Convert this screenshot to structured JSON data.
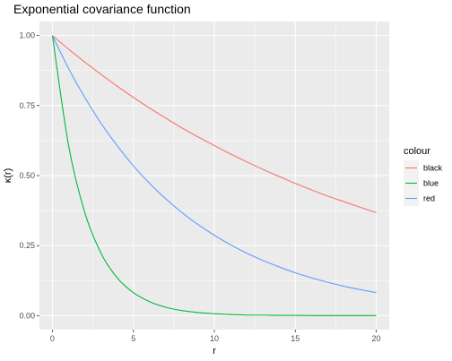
{
  "chart_data": {
    "type": "line",
    "title": "Exponential covariance function",
    "xlabel": "r",
    "ylabel": "κ(r)",
    "xlim": [
      -0.8,
      20.8
    ],
    "ylim": [
      -0.05,
      1.05
    ],
    "x_ticks": [
      0,
      5,
      10,
      15,
      20
    ],
    "x_tick_labels": [
      "0",
      "5",
      "10",
      "15",
      "20"
    ],
    "y_ticks": [
      0,
      0.25,
      0.5,
      0.75,
      1
    ],
    "y_tick_labels": [
      "0.00",
      "0.25",
      "0.50",
      "0.75",
      "1.00"
    ],
    "grid": true,
    "legend": {
      "title": "colour",
      "placement": "right",
      "entries": [
        "black",
        "blue",
        "red"
      ]
    },
    "x": [
      0,
      1,
      2,
      3,
      4,
      5,
      6,
      7,
      8,
      9,
      10,
      11,
      12,
      13,
      14,
      15,
      16,
      17,
      18,
      19,
      20
    ],
    "series": [
      {
        "name": "black",
        "color": "#F8766D",
        "values": [
          1.0,
          0.951,
          0.905,
          0.861,
          0.819,
          0.779,
          0.741,
          0.705,
          0.67,
          0.638,
          0.607,
          0.577,
          0.549,
          0.522,
          0.497,
          0.472,
          0.449,
          0.427,
          0.407,
          0.387,
          0.368
        ]
      },
      {
        "name": "blue",
        "color": "#00BA38",
        "values": [
          1.0,
          0.607,
          0.368,
          0.223,
          0.135,
          0.082,
          0.05,
          0.03,
          0.018,
          0.011,
          0.007,
          0.004,
          0.002,
          0.002,
          0.001,
          0.001,
          0.0,
          0.0,
          0.0,
          0.0,
          0.0
        ]
      },
      {
        "name": "red",
        "color": "#619CFF",
        "values": [
          1.0,
          0.882,
          0.779,
          0.687,
          0.607,
          0.535,
          0.472,
          0.417,
          0.368,
          0.325,
          0.287,
          0.253,
          0.223,
          0.197,
          0.174,
          0.153,
          0.135,
          0.119,
          0.105,
          0.093,
          0.082
        ]
      }
    ]
  }
}
